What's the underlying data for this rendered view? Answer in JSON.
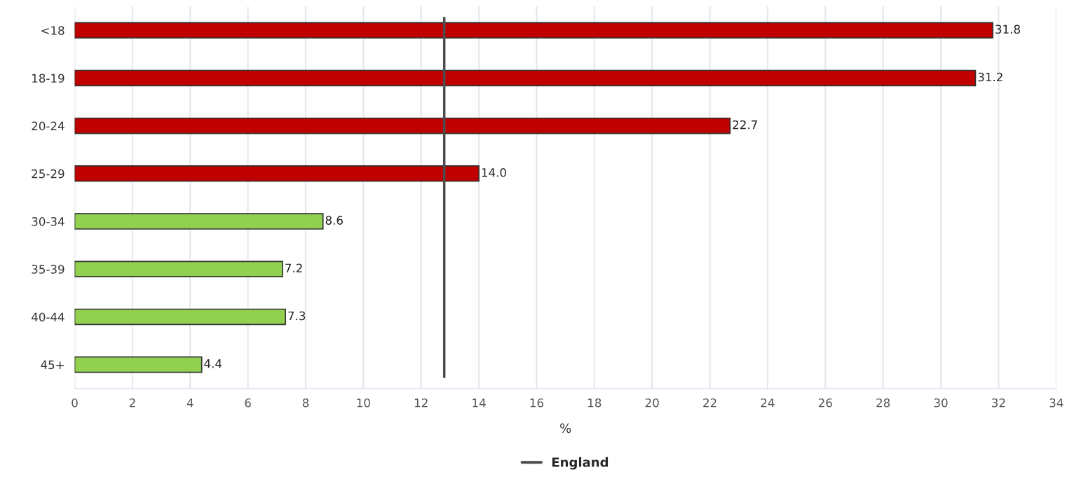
{
  "chart_data": {
    "type": "bar",
    "orientation": "horizontal",
    "xlabel": "%",
    "categories": [
      "<18",
      "18-19",
      "20-24",
      "25-29",
      "30-34",
      "35-39",
      "40-44",
      "45+"
    ],
    "values": [
      31.8,
      31.2,
      22.7,
      14.0,
      8.6,
      7.2,
      7.3,
      4.4
    ],
    "colors": [
      "#c00000",
      "#c00000",
      "#c00000",
      "#c00000",
      "#92d050",
      "#92d050",
      "#92d050",
      "#92d050"
    ],
    "value_labels": [
      "31.8",
      "31.2",
      "22.7",
      "14.0",
      "8.6",
      "7.2",
      "7.3",
      "4.4"
    ],
    "xlim": [
      0,
      34
    ],
    "xticks": [
      0,
      2,
      4,
      6,
      8,
      10,
      12,
      14,
      16,
      18,
      20,
      22,
      24,
      26,
      28,
      30,
      32,
      34
    ],
    "grid": "x",
    "legend": "bottom",
    "ref_lines": [
      {
        "axis": "x",
        "value": 12.8,
        "label": "England",
        "color": "#4d4d4d",
        "line_style": "solid"
      }
    ]
  }
}
